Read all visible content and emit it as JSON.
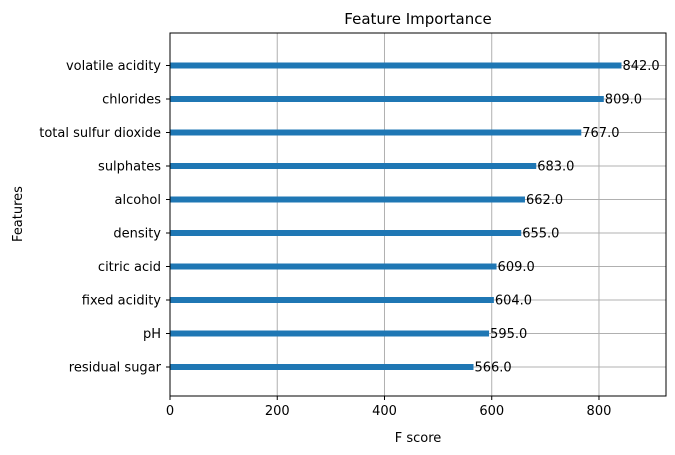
{
  "chart_data": {
    "type": "bar",
    "orientation": "horizontal",
    "title": "Feature Importance",
    "xlabel": "F score",
    "ylabel": "Features",
    "xlim": [
      0,
      925
    ],
    "xticks": [
      0,
      200,
      400,
      600,
      800
    ],
    "grid": true,
    "bar_color": "#1f77b4",
    "categories": [
      "volatile acidity",
      "chlorides",
      "total sulfur dioxide",
      "sulphates",
      "alcohol",
      "density",
      "citric acid",
      "fixed acidity",
      "pH",
      "residual sugar"
    ],
    "values": [
      842,
      809,
      767,
      683,
      662,
      655,
      609,
      604,
      595,
      566
    ],
    "value_labels": [
      "842.0",
      "809.0",
      "767.0",
      "683.0",
      "662.0",
      "655.0",
      "609.0",
      "604.0",
      "595.0",
      "566.0"
    ]
  }
}
